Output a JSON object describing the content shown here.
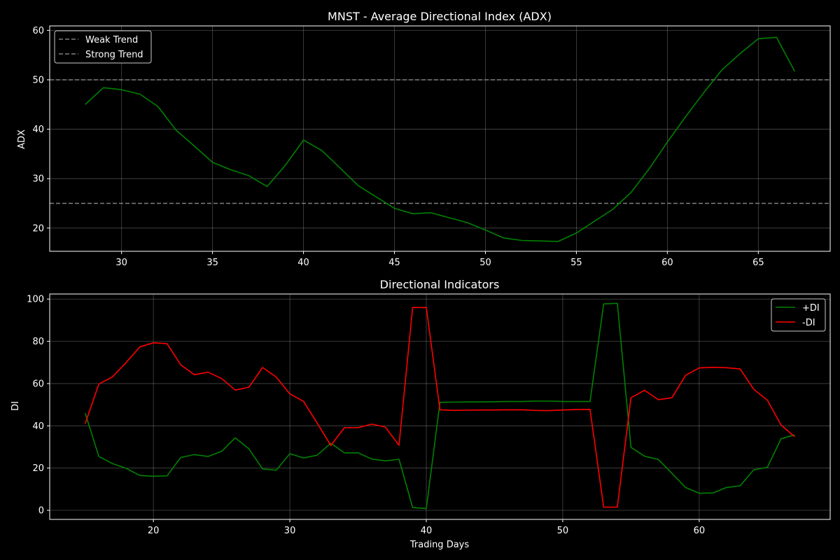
{
  "chart_data": [
    {
      "type": "line",
      "title": "MNST - Average Directional Index (ADX)",
      "xlabel": "",
      "ylabel": "ADX",
      "xlim": [
        26.05,
        68.95
      ],
      "ylim": [
        15.3,
        60.9
      ],
      "xticks": [
        30,
        35,
        40,
        45,
        50,
        55,
        60,
        65
      ],
      "yticks": [
        20,
        30,
        40,
        50,
        60
      ],
      "grid": true,
      "legend_position": "upper-left",
      "background": "#000000",
      "series": [
        {
          "name": "ADX",
          "color": "#008000",
          "x": [
            28,
            29,
            30,
            31,
            32,
            33,
            34,
            35,
            36,
            37,
            38,
            39,
            40,
            41,
            42,
            43,
            44,
            45,
            46,
            47,
            48,
            49,
            50,
            51,
            52,
            53,
            54,
            55,
            56,
            57,
            58,
            59,
            60,
            61,
            62,
            63,
            64,
            65,
            66,
            67
          ],
          "values": [
            45.0,
            48.4,
            48.0,
            47.1,
            44.6,
            39.8,
            36.6,
            33.3,
            31.8,
            30.6,
            28.4,
            32.7,
            37.8,
            35.7,
            32.2,
            28.6,
            26.3,
            24.0,
            22.9,
            23.1,
            22.1,
            21.1,
            19.6,
            18.0,
            17.5,
            17.4,
            17.3,
            19.0,
            21.4,
            23.8,
            27.2,
            32.0,
            37.4,
            42.5,
            47.4,
            52.0,
            55.3,
            58.3,
            58.6,
            51.7
          ]
        }
      ],
      "reference_lines": [
        {
          "name": "Weak Trend",
          "y": 50,
          "color": "#808080"
        },
        {
          "name": "Strong Trend",
          "y": 25,
          "color": "#808080"
        }
      ]
    },
    {
      "type": "line",
      "title": "Directional Indicators",
      "xlabel": "Trading Days",
      "ylabel": "DI",
      "xlim": [
        12.4,
        69.6
      ],
      "ylim": [
        -4.3,
        102.4
      ],
      "xticks": [
        20,
        30,
        40,
        50,
        60
      ],
      "yticks": [
        0,
        20,
        40,
        60,
        80,
        100
      ],
      "grid": true,
      "legend_position": "upper-right",
      "background": "#000000",
      "series": [
        {
          "name": "+DI",
          "color": "#008000",
          "x": [
            15,
            16,
            17,
            18,
            19,
            20,
            21,
            22,
            23,
            24,
            25,
            26,
            27,
            28,
            29,
            30,
            31,
            32,
            33,
            34,
            35,
            36,
            37,
            38,
            39,
            40,
            41,
            42,
            43,
            44,
            45,
            46,
            47,
            48,
            49,
            50,
            51,
            52,
            53,
            54,
            55,
            56,
            57,
            58,
            59,
            60,
            61,
            62,
            63,
            64,
            65,
            66,
            67
          ],
          "values": [
            46.0,
            25.5,
            22.1,
            19.9,
            16.5,
            16.1,
            16.3,
            25.0,
            26.4,
            25.5,
            27.9,
            34.3,
            29.1,
            19.6,
            19.0,
            26.8,
            24.8,
            26.1,
            31.8,
            27.2,
            27.2,
            24.3,
            23.4,
            24.2,
            1.3,
            0.8,
            51.1,
            51.2,
            51.3,
            51.3,
            51.4,
            51.5,
            51.5,
            51.7,
            51.7,
            51.5,
            51.5,
            51.5,
            97.7,
            98.0,
            29.8,
            25.6,
            24.1,
            17.5,
            10.8,
            8.1,
            8.2,
            10.8,
            11.6,
            19.2,
            20.4,
            33.9,
            35.7
          ]
        },
        {
          "name": "-DI",
          "color": "#ff0000",
          "x": [
            15,
            16,
            17,
            18,
            19,
            20,
            21,
            22,
            23,
            24,
            25,
            26,
            27,
            28,
            29,
            30,
            31,
            32,
            33,
            34,
            35,
            36,
            37,
            38,
            39,
            40,
            41,
            42,
            43,
            44,
            45,
            46,
            47,
            48,
            49,
            50,
            51,
            52,
            53,
            54,
            55,
            56,
            57,
            58,
            59,
            60,
            61,
            62,
            63,
            64,
            65,
            66,
            67
          ],
          "values": [
            41.0,
            59.8,
            63.2,
            70.0,
            77.3,
            79.3,
            78.9,
            68.9,
            64.2,
            65.4,
            62.4,
            56.9,
            58.3,
            67.6,
            63.1,
            55.1,
            51.6,
            41.3,
            30.7,
            39.1,
            39.1,
            40.8,
            39.4,
            30.8,
            96.0,
            96.0,
            47.6,
            47.3,
            47.4,
            47.5,
            47.5,
            47.6,
            47.6,
            47.3,
            47.2,
            47.5,
            47.7,
            47.8,
            1.5,
            1.5,
            53.3,
            56.8,
            52.4,
            53.3,
            63.9,
            67.4,
            67.7,
            67.5,
            66.9,
            57.3,
            52.1,
            40.4,
            34.8
          ]
        }
      ]
    }
  ]
}
